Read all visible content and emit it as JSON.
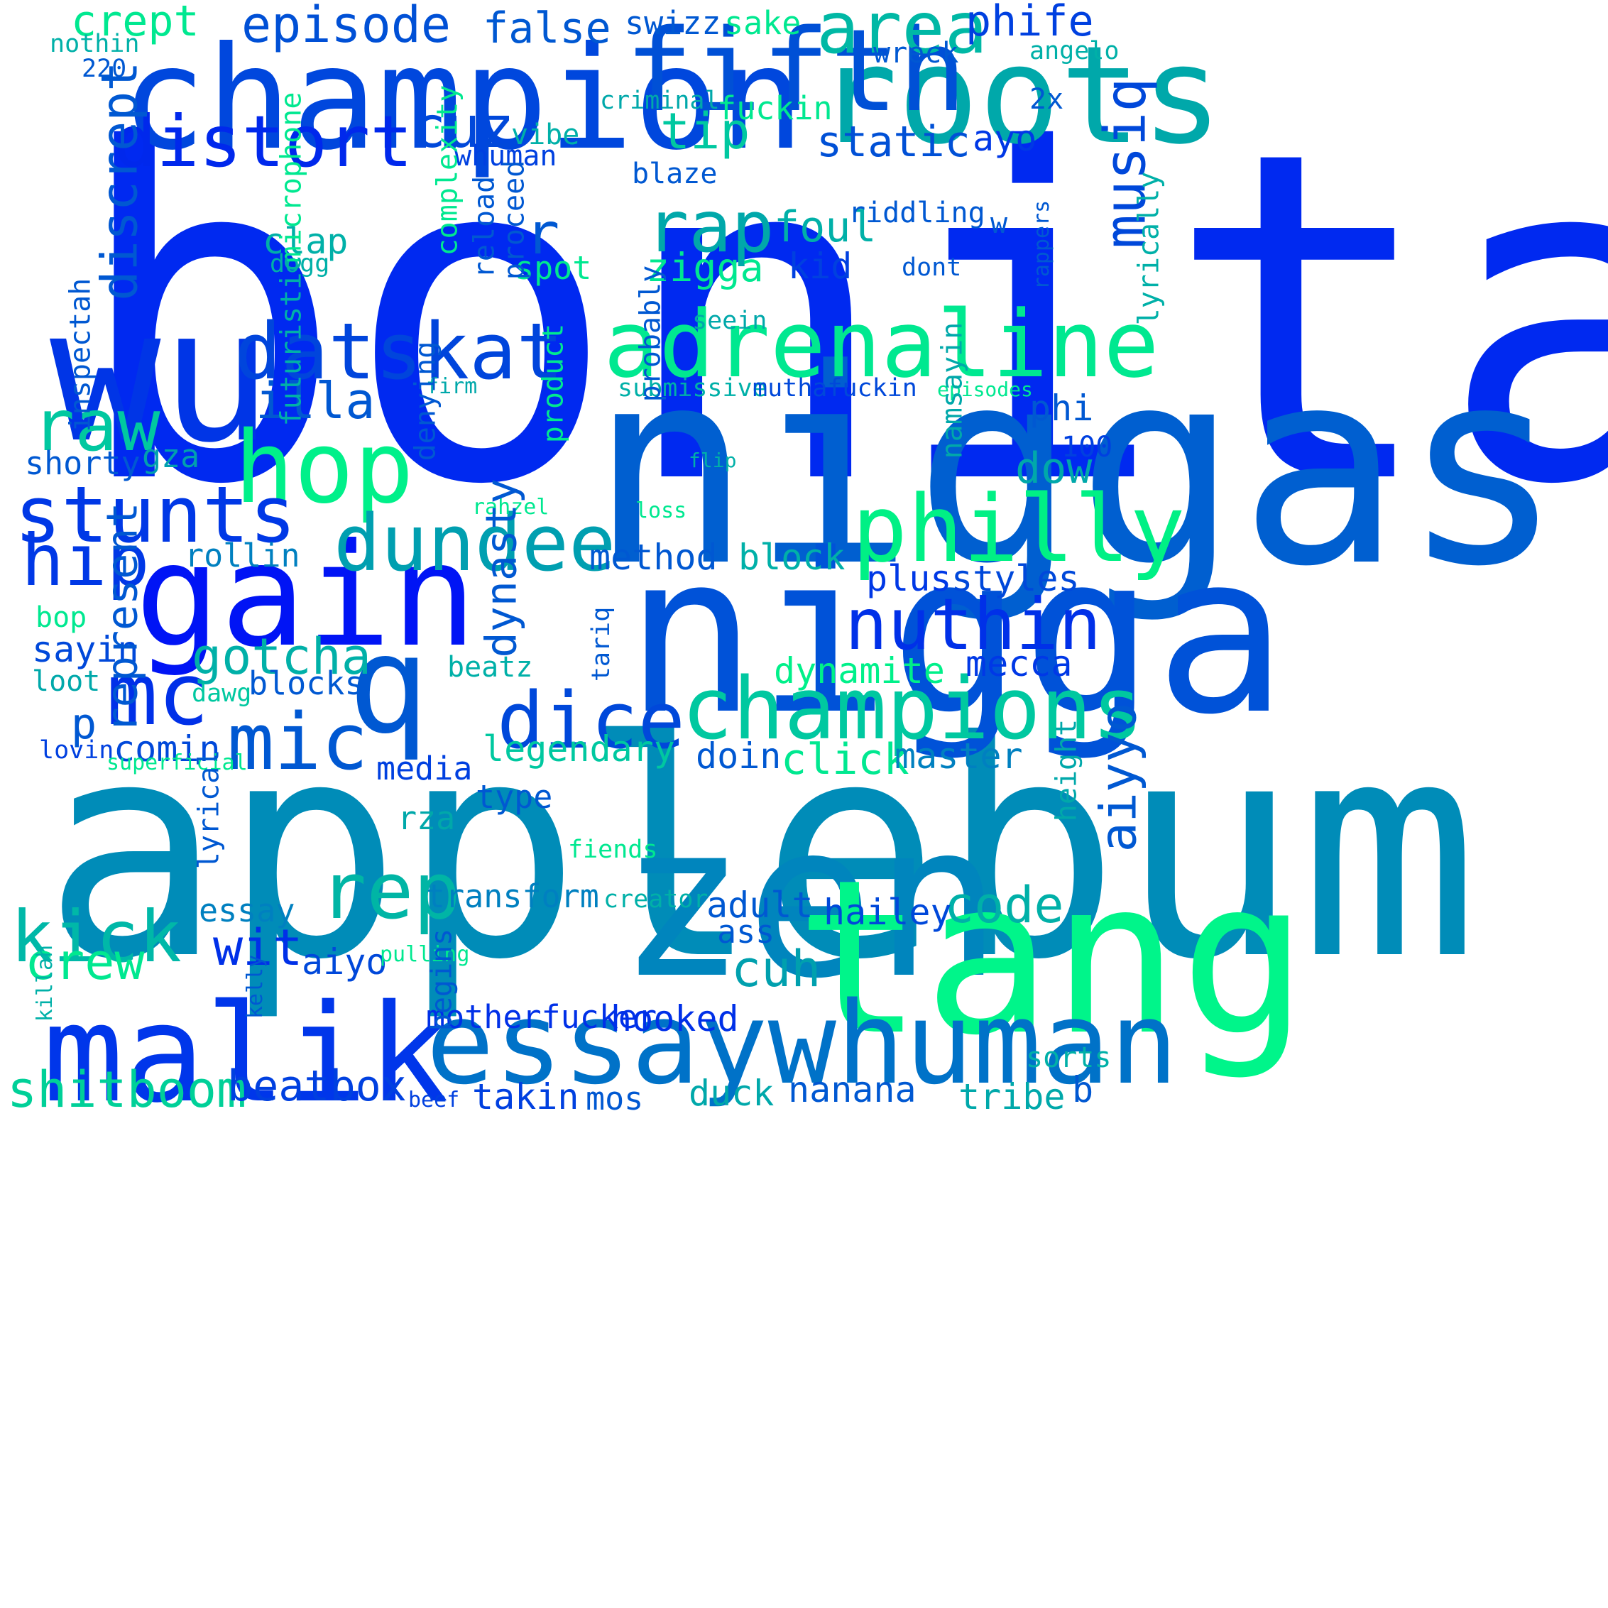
{
  "words": [
    {
      "text": "bonita",
      "color": "#0029f0",
      "vertical": false
    },
    {
      "text": "applebum",
      "color": "#008cb8",
      "vertical": false
    },
    {
      "text": "niggas",
      "color": "#005fd0",
      "vertical": false
    },
    {
      "text": "nigga",
      "color": "#0052d8",
      "vertical": false
    },
    {
      "text": "champion",
      "color": "#0047dd",
      "vertical": false
    },
    {
      "text": "zen",
      "color": "#0085bd",
      "vertical": false
    },
    {
      "text": "tang",
      "color": "#00f58a",
      "vertical": false
    },
    {
      "text": "malik",
      "color": "#0036ea",
      "vertical": false
    },
    {
      "text": "essaywhuman",
      "color": "#0072c8",
      "vertical": false
    },
    {
      "text": "wu",
      "color": "#0035e6",
      "vertical": false
    },
    {
      "text": "roots",
      "color": "#00a8aa",
      "vertical": false
    },
    {
      "text": "fifth",
      "color": "#0050d6",
      "vertical": false
    },
    {
      "text": "gain",
      "color": "#0014f5",
      "vertical": false
    },
    {
      "text": "adrenaline",
      "color": "#00e890",
      "vertical": false
    },
    {
      "text": "champions",
      "color": "#00c8a0",
      "vertical": false
    },
    {
      "text": "datskat",
      "color": "#0045dc",
      "vertical": false
    },
    {
      "text": "hop",
      "color": "#00f08a",
      "vertical": false
    },
    {
      "text": "philly",
      "color": "#00f085",
      "vertical": false
    },
    {
      "text": "stunts",
      "color": "#0038e6",
      "vertical": false
    },
    {
      "text": "dundee",
      "color": "#009fb0",
      "vertical": false
    },
    {
      "text": "distort",
      "color": "#0028ec",
      "vertical": false
    },
    {
      "text": "nuthin",
      "color": "#0030e8",
      "vertical": false
    },
    {
      "text": "q",
      "color": "#0058d2",
      "vertical": false
    },
    {
      "text": "mc",
      "color": "#0030e8",
      "vertical": false
    },
    {
      "text": "mic",
      "color": "#0058d2",
      "vertical": false
    },
    {
      "text": "dice",
      "color": "#0048da",
      "vertical": false
    },
    {
      "text": "rep",
      "color": "#00b5a5",
      "vertical": false
    },
    {
      "text": "kick",
      "color": "#00b8a8",
      "vertical": false
    },
    {
      "text": "hip",
      "color": "#0038e6",
      "vertical": false
    },
    {
      "text": "raw",
      "color": "#00c8a0",
      "vertical": false
    },
    {
      "text": "area",
      "color": "#00b8a5",
      "vertical": false
    },
    {
      "text": "rap",
      "color": "#00a8aa",
      "vertical": false
    },
    {
      "text": "cuz",
      "color": "#0048da",
      "vertical": false
    },
    {
      "text": "tip",
      "color": "#00c8a0",
      "vertical": false
    },
    {
      "text": "episode",
      "color": "#0050d6",
      "vertical": false
    },
    {
      "text": "false",
      "color": "#0058d2",
      "vertical": false
    },
    {
      "text": "phife",
      "color": "#0040e0",
      "vertical": false
    },
    {
      "text": "crept",
      "color": "#00e890",
      "vertical": false
    },
    {
      "text": "static",
      "color": "#0050d6",
      "vertical": false
    },
    {
      "text": "ayo",
      "color": "#0038e6",
      "vertical": false
    },
    {
      "text": "illa",
      "color": "#0058d2",
      "vertical": false
    },
    {
      "text": "gotcha",
      "color": "#00b0a8",
      "vertical": false
    },
    {
      "text": "zigga",
      "color": "#00e890",
      "vertical": false
    },
    {
      "text": "foul",
      "color": "#00b0a8",
      "vertical": false
    },
    {
      "text": "kid",
      "color": "#0040e0",
      "vertical": false
    },
    {
      "text": "crew",
      "color": "#00e890",
      "vertical": false
    },
    {
      "text": "wit",
      "color": "#0030e8",
      "vertical": false
    },
    {
      "text": "cuh",
      "color": "#00a0ae",
      "vertical": false
    },
    {
      "text": "code",
      "color": "#00b0a8",
      "vertical": false
    },
    {
      "text": "phi",
      "color": "#0058d2",
      "vertical": false
    },
    {
      "text": "dow",
      "color": "#00a8aa",
      "vertical": false
    },
    {
      "text": "100",
      "color": "#0040e0",
      "vertical": false
    },
    {
      "text": "plus",
      "color": "#0038e6",
      "vertical": false
    },
    {
      "text": "styles",
      "color": "#0048da",
      "vertical": false
    },
    {
      "text": "method",
      "color": "#0058d2",
      "vertical": false
    },
    {
      "text": "block",
      "color": "#00b0a8",
      "vertical": false
    },
    {
      "text": "rollin",
      "color": "#0080c0",
      "vertical": false
    },
    {
      "text": "shorty",
      "color": "#0058d2",
      "vertical": false
    },
    {
      "text": "gza",
      "color": "#00a0ae",
      "vertical": false
    },
    {
      "text": "sayin",
      "color": "#0048da",
      "vertical": false
    },
    {
      "text": "bop",
      "color": "#00e890",
      "vertical": false
    },
    {
      "text": "loot",
      "color": "#00a8aa",
      "vertical": false
    },
    {
      "text": "blocks",
      "color": "#0058d2",
      "vertical": false
    },
    {
      "text": "dawg",
      "color": "#00c8a0",
      "vertical": false
    },
    {
      "text": "p",
      "color": "#0058d2",
      "vertical": false
    },
    {
      "text": "comin",
      "color": "#0048da",
      "vertical": false
    },
    {
      "text": "lovin",
      "color": "#0040e0",
      "vertical": false
    },
    {
      "text": "superficial",
      "color": "#00e890",
      "vertical": false
    },
    {
      "text": "beatz",
      "color": "#00b0a8",
      "vertical": false
    },
    {
      "text": "dynamite",
      "color": "#00f08a",
      "vertical": false
    },
    {
      "text": "mecca",
      "color": "#0038e6",
      "vertical": false
    },
    {
      "text": "legendary",
      "color": "#00c8a0",
      "vertical": false
    },
    {
      "text": "doin",
      "color": "#0058d2",
      "vertical": false
    },
    {
      "text": "click",
      "color": "#00e890",
      "vertical": false
    },
    {
      "text": "master",
      "color": "#0080c0",
      "vertical": false
    },
    {
      "text": "media",
      "color": "#0040e0",
      "vertical": false
    },
    {
      "text": "type",
      "color": "#0058d2",
      "vertical": false
    },
    {
      "text": "rza",
      "color": "#00a8aa",
      "vertical": false
    },
    {
      "text": "fiends",
      "color": "#00e890",
      "vertical": false
    },
    {
      "text": "transform",
      "color": "#0080c0",
      "vertical": false
    },
    {
      "text": "creator",
      "color": "#00b0a8",
      "vertical": false
    },
    {
      "text": "adult",
      "color": "#0058d2",
      "vertical": false
    },
    {
      "text": "hailey",
      "color": "#0048da",
      "vertical": false
    },
    {
      "text": "ass",
      "color": "#0058d2",
      "vertical": false
    },
    {
      "text": "essay",
      "color": "#0080c0",
      "vertical": false
    },
    {
      "text": "aiyo",
      "color": "#0048da",
      "vertical": false
    },
    {
      "text": "pulling",
      "color": "#00e890",
      "vertical": false
    },
    {
      "text": "motherfucker",
      "color": "#0030e8",
      "vertical": false
    },
    {
      "text": "hooked",
      "color": "#0030e8",
      "vertical": false
    },
    {
      "text": "shitboom",
      "color": "#00d098",
      "vertical": false
    },
    {
      "text": "beatbox",
      "color": "#0040e0",
      "vertical": false
    },
    {
      "text": "beef",
      "color": "#0040e0",
      "vertical": false
    },
    {
      "text": "takin",
      "color": "#0040e0",
      "vertical": false
    },
    {
      "text": "mos",
      "color": "#0058d2",
      "vertical": false
    },
    {
      "text": "duck",
      "color": "#00a8aa",
      "vertical": false
    },
    {
      "text": "nanana",
      "color": "#0058d2",
      "vertical": false
    },
    {
      "text": "tribe",
      "color": "#00a8aa",
      "vertical": false
    },
    {
      "text": "b",
      "color": "#0058d2",
      "vertical": false
    },
    {
      "text": "sorts",
      "color": "#00b0a8",
      "vertical": false
    },
    {
      "text": "swizz",
      "color": "#0058d2",
      "vertical": false
    },
    {
      "text": "sake",
      "color": "#00e890",
      "vertical": false
    },
    {
      "text": "nothin",
      "color": "#00b0a8",
      "vertical": false
    },
    {
      "text": "220",
      "color": "#0058d2",
      "vertical": false
    },
    {
      "text": "wreck",
      "color": "#0058d2",
      "vertical": false
    },
    {
      "text": "angelo",
      "color": "#00b0a8",
      "vertical": false
    },
    {
      "text": "criminal",
      "color": "#00a8aa",
      "vertical": false
    },
    {
      "text": "fuckin",
      "color": "#00e890",
      "vertical": false
    },
    {
      "text": "2x",
      "color": "#0058d2",
      "vertical": false
    },
    {
      "text": "vibe",
      "color": "#00b0a8",
      "vertical": false
    },
    {
      "text": "whuman",
      "color": "#0040e0",
      "vertical": false
    },
    {
      "text": "blaze",
      "color": "#0058d2",
      "vertical": false
    },
    {
      "text": "riddling",
      "color": "#0058d2",
      "vertical": false
    },
    {
      "text": "w",
      "color": "#0058d2",
      "vertical": false
    },
    {
      "text": "clap",
      "color": "#00b0a8",
      "vertical": false
    },
    {
      "text": "dogg",
      "color": "#00b0a8",
      "vertical": false
    },
    {
      "text": "spot",
      "color": "#00e890",
      "vertical": false
    },
    {
      "text": "dont",
      "color": "#0058d2",
      "vertical": false
    },
    {
      "text": "seein",
      "color": "#00a8aa",
      "vertical": false
    },
    {
      "text": "firm",
      "color": "#00a8aa",
      "vertical": false
    },
    {
      "text": "submissive",
      "color": "#00b0a8",
      "vertical": false
    },
    {
      "text": "muthafuckin",
      "color": "#0048da",
      "vertical": false
    },
    {
      "text": "episodes",
      "color": "#00e890",
      "vertical": false
    },
    {
      "text": "flip",
      "color": "#00b0a8",
      "vertical": false
    },
    {
      "text": "rahzel",
      "color": "#00e890",
      "vertical": false
    },
    {
      "text": "loss",
      "color": "#00e890",
      "vertical": false
    },
    {
      "text": "tariq",
      "color": "#0058d2",
      "vertical": true
    },
    {
      "text": "musiq",
      "color": "#0048da",
      "vertical": true
    },
    {
      "text": "r",
      "color": "#0058d2",
      "vertical": false
    },
    {
      "text": "aiyyo",
      "color": "#0058d2",
      "vertical": true
    },
    {
      "text": "discrept",
      "color": "#0058d2",
      "vertical": true
    },
    {
      "text": "represent",
      "color": "#0058d2",
      "vertical": true
    },
    {
      "text": "inspectah",
      "color": "#0058d2",
      "vertical": true
    },
    {
      "text": "microphone",
      "color": "#00e890",
      "vertical": true
    },
    {
      "text": "futuristic",
      "color": "#00b0a8",
      "vertical": true
    },
    {
      "text": "complexity",
      "color": "#00e890",
      "vertical": true
    },
    {
      "text": "reload",
      "color": "#0058d2",
      "vertical": true
    },
    {
      "text": "proceed",
      "color": "#0058d2",
      "vertical": true
    },
    {
      "text": "probably",
      "color": "#0058d2",
      "vertical": true
    },
    {
      "text": "denying",
      "color": "#0058d2",
      "vertical": true
    },
    {
      "text": "product",
      "color": "#00e890",
      "vertical": true
    },
    {
      "text": "dynasty",
      "color": "#0058d2",
      "vertical": true
    },
    {
      "text": "lyrically",
      "color": "#00b0a8",
      "vertical": true
    },
    {
      "text": "rappers",
      "color": "#0058d2",
      "vertical": true
    },
    {
      "text": "namsayin",
      "color": "#00a8aa",
      "vertical": true
    },
    {
      "text": "height",
      "color": "#00a8aa",
      "vertical": true
    },
    {
      "text": "lyrical",
      "color": "#0058d2",
      "vertical": true
    },
    {
      "text": "killah",
      "color": "#00b0a8",
      "vertical": true
    },
    {
      "text": "kelly",
      "color": "#0058d2",
      "vertical": true
    },
    {
      "text": "begins",
      "color": "#0058d2",
      "vertical": true
    }
  ]
}
